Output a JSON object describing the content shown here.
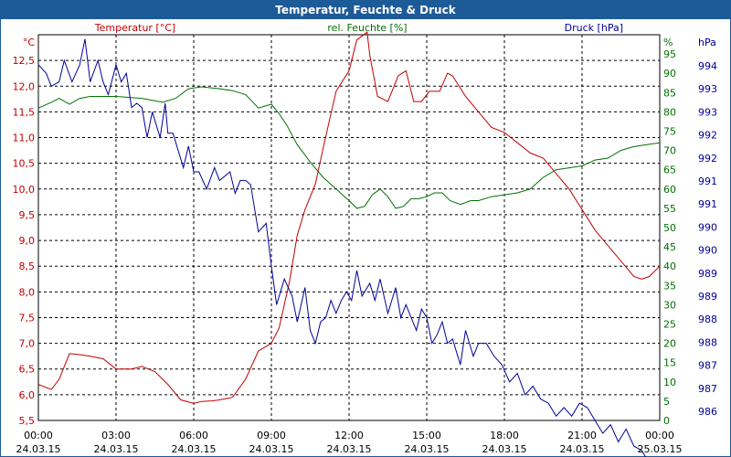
{
  "window": {
    "title": "Temperatur, Feuchte & Druck"
  },
  "colors": {
    "titlebar": "#1d5a98",
    "temperature": "#c00000",
    "humidity": "#007000",
    "pressure": "#000099",
    "grid": "#000000"
  },
  "chart_data": {
    "type": "line",
    "title": "Temperatur, Feuchte & Druck",
    "grid": true,
    "axes": {
      "temperature": {
        "header": "Temperatur [°C]",
        "unit": "°C",
        "side": "left",
        "ylim": [
          5.5,
          13.0
        ],
        "ticks": [
          "12,5",
          "12,0",
          "11,5",
          "11,0",
          "10,5",
          "10,0",
          "9,5",
          "9,0",
          "8,5",
          "8,0",
          "7,5",
          "7,0",
          "6,5",
          "6,0",
          "5,5"
        ]
      },
      "humidity": {
        "header": "rel. Feuchte [%]",
        "unit": "%",
        "side": "right",
        "ylim": [
          0,
          100
        ],
        "ticks": [
          "95",
          "90",
          "85",
          "80",
          "75",
          "70",
          "65",
          "60",
          "55",
          "50",
          "45",
          "40",
          "35",
          "30",
          "25",
          "20",
          "15",
          "10",
          "5",
          "0"
        ]
      },
      "pressure": {
        "header": "Druck [hPa]",
        "unit": "hPa",
        "side": "right-outer",
        "ylim": [
          985.7,
          994.7
        ],
        "ticks": [
          "994",
          "993",
          "993",
          "992",
          "992",
          "991",
          "991",
          "990",
          "990",
          "989",
          "989",
          "988",
          "988",
          "987",
          "987",
          "986"
        ]
      },
      "x": {
        "tick_times": [
          "00:00",
          "03:00",
          "06:00",
          "09:00",
          "12:00",
          "15:00",
          "18:00",
          "21:00",
          "00:00"
        ],
        "tick_dates": [
          "24.03.15",
          "24.03.15",
          "24.03.15",
          "24.03.15",
          "24.03.15",
          "24.03.15",
          "24.03.15",
          "24.03.15",
          "25.03.15"
        ],
        "range_hours": [
          0,
          24
        ]
      }
    },
    "series": [
      {
        "name": "Temperatur [°C]",
        "axis": "temperature",
        "x": [
          0,
          0.5,
          0.8,
          1.2,
          1.6,
          2.0,
          2.5,
          3.0,
          3.3,
          3.6,
          4.0,
          4.5,
          5.0,
          5.5,
          6.0,
          6.3,
          6.7,
          7.0,
          7.5,
          8.0,
          8.5,
          9.0,
          9.3,
          9.7,
          10.0,
          10.3,
          10.7,
          11.0,
          11.5,
          12.0,
          12.3,
          12.7,
          12.8,
          13.1,
          13.5,
          13.9,
          14.2,
          14.5,
          14.8,
          15.1,
          15.5,
          15.8,
          16.0,
          16.5,
          17.0,
          17.5,
          18.0,
          18.5,
          19.0,
          19.5,
          20.0,
          20.5,
          21.0,
          21.5,
          22.0,
          22.5,
          23.0,
          23.3,
          23.6,
          24.0
        ],
        "values": [
          6.2,
          6.1,
          6.3,
          6.8,
          6.78,
          6.75,
          6.7,
          6.5,
          6.5,
          6.5,
          6.55,
          6.45,
          6.2,
          5.9,
          5.83,
          5.87,
          5.88,
          5.9,
          5.95,
          6.3,
          6.85,
          7.0,
          7.3,
          8.2,
          9.1,
          9.6,
          10.1,
          10.8,
          11.9,
          12.3,
          12.9,
          13.05,
          12.6,
          11.8,
          11.7,
          12.2,
          12.3,
          11.7,
          11.7,
          11.9,
          11.9,
          12.25,
          12.2,
          11.8,
          11.5,
          11.2,
          11.1,
          10.9,
          10.7,
          10.6,
          10.3,
          10.0,
          9.6,
          9.2,
          8.9,
          8.6,
          8.3,
          8.25,
          8.3,
          8.5
        ]
      },
      {
        "name": "rel. Feuchte [%]",
        "axis": "humidity",
        "x": [
          0,
          0.5,
          0.8,
          1.2,
          1.6,
          2.0,
          3.0,
          4.0,
          4.8,
          5.3,
          5.8,
          6.3,
          7.0,
          7.5,
          8.0,
          8.5,
          9.0,
          9.3,
          9.6,
          10.0,
          10.5,
          11.0,
          11.5,
          12.0,
          12.3,
          12.6,
          12.9,
          13.2,
          13.5,
          13.8,
          14.1,
          14.4,
          14.7,
          15.0,
          15.3,
          15.6,
          15.9,
          16.3,
          16.7,
          17.0,
          17.5,
          18.0,
          18.5,
          19.0,
          19.5,
          20.0,
          20.5,
          21.0,
          21.5,
          22.0,
          22.5,
          23.0,
          23.5,
          24.0
        ],
        "values": [
          81,
          82.5,
          83.5,
          82,
          83.5,
          84,
          84,
          83.5,
          82.5,
          83.5,
          86,
          86.5,
          86,
          85.5,
          84.5,
          81,
          82,
          79.5,
          76.5,
          71.5,
          67,
          63,
          60,
          57,
          55,
          55.5,
          58.5,
          60,
          58,
          55,
          55.5,
          57.5,
          57.5,
          58,
          59,
          59,
          57,
          56,
          57,
          57,
          58,
          58.5,
          59,
          60,
          63,
          65,
          65.5,
          66,
          67.5,
          68,
          70,
          71,
          71.5,
          72
        ]
      },
      {
        "name": "Druck [hPa]",
        "axis": "pressure",
        "x": [
          0,
          0.3,
          0.5,
          0.8,
          1.0,
          1.3,
          1.6,
          1.8,
          2.0,
          2.3,
          2.5,
          2.7,
          3.0,
          3.2,
          3.4,
          3.6,
          3.8,
          4.0,
          4.2,
          4.4,
          4.7,
          4.9,
          5.0,
          5.2,
          5.4,
          5.6,
          5.8,
          6.0,
          6.2,
          6.5,
          6.8,
          7.0,
          7.2,
          7.4,
          7.6,
          7.8,
          8.0,
          8.2,
          8.5,
          8.8,
          9.0,
          9.2,
          9.5,
          9.8,
          10.0,
          10.3,
          10.5,
          10.7,
          10.9,
          11.1,
          11.3,
          11.5,
          11.7,
          11.9,
          12.1,
          12.3,
          12.5,
          12.8,
          13.0,
          13.2,
          13.5,
          13.8,
          14.0,
          14.2,
          14.4,
          14.6,
          14.8,
          15.0,
          15.2,
          15.4,
          15.6,
          15.8,
          16.0,
          16.3,
          16.5,
          16.8,
          17.0,
          17.3,
          17.6,
          17.9,
          18.2,
          18.5,
          18.8,
          19.1,
          19.4,
          19.7,
          20.0,
          20.3,
          20.6,
          20.9,
          21.2,
          21.5,
          21.8,
          22.1,
          22.4,
          22.7,
          23.0,
          23.3,
          23.6,
          23.8,
          24.0
        ],
        "values": [
          994.0,
          993.8,
          993.5,
          993.6,
          994.1,
          993.6,
          994.0,
          994.6,
          993.6,
          994.1,
          993.6,
          993.3,
          994.0,
          993.6,
          993.8,
          993.0,
          993.1,
          993.0,
          992.3,
          992.9,
          992.3,
          993.1,
          992.4,
          992.4,
          992.0,
          991.6,
          992.1,
          991.5,
          991.5,
          991.1,
          991.6,
          991.3,
          991.4,
          991.5,
          991.0,
          991.3,
          991.3,
          991.2,
          990.1,
          990.3,
          989.3,
          988.4,
          989.0,
          988.6,
          988.0,
          988.8,
          987.8,
          987.5,
          988.0,
          988.1,
          988.5,
          988.2,
          988.5,
          988.7,
          988.5,
          989.2,
          988.6,
          988.9,
          988.5,
          989.0,
          988.2,
          988.8,
          988.1,
          988.4,
          988.1,
          987.8,
          988.3,
          988.1,
          987.5,
          987.7,
          988.0,
          987.5,
          987.6,
          987.0,
          987.8,
          987.2,
          987.5,
          987.5,
          987.2,
          987.0,
          986.6,
          986.8,
          986.3,
          986.5,
          986.2,
          986.1,
          985.8,
          986.0,
          985.8,
          986.1,
          986.0,
          985.7,
          985.4,
          985.6,
          985.2,
          985.5,
          985.1,
          985.0,
          984.7,
          984.6,
          984.6
        ]
      }
    ]
  }
}
